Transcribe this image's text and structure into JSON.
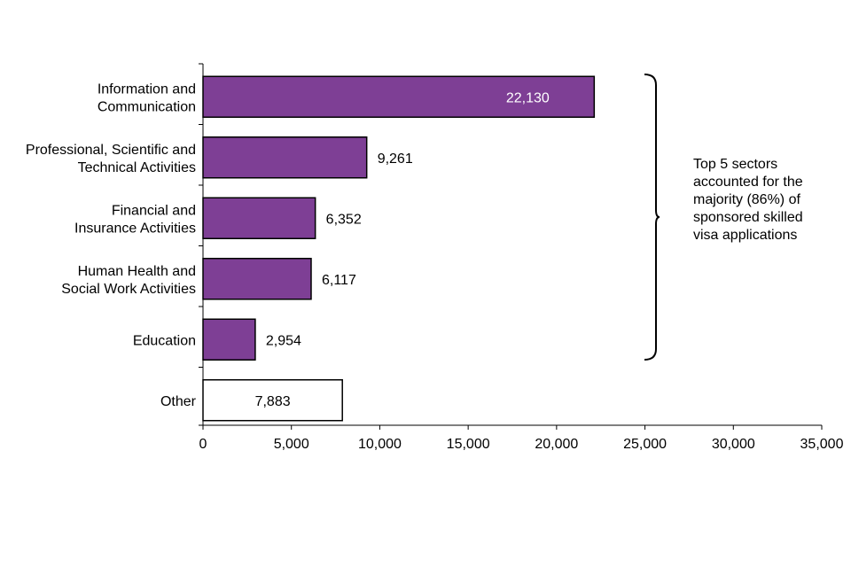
{
  "chart_data": {
    "type": "bar",
    "orientation": "horizontal",
    "categories": [
      [
        "Information and",
        "Communication"
      ],
      [
        "Professional, Scientific and",
        "Technical Activities"
      ],
      [
        "Financial and",
        "Insurance Activities"
      ],
      [
        "Human Health and",
        "Social Work Activities"
      ],
      [
        "Education"
      ],
      [
        "Other"
      ]
    ],
    "values": [
      22130,
      9261,
      6352,
      6117,
      2954,
      7883
    ],
    "value_labels": [
      "22,130",
      "9,261",
      "6,352",
      "6,117",
      "2,954",
      "7,883"
    ],
    "highlighted": [
      true,
      true,
      true,
      true,
      true,
      false
    ],
    "xlim": [
      0,
      35000
    ],
    "xticks": [
      0,
      5000,
      10000,
      15000,
      20000,
      25000,
      30000,
      35000
    ],
    "xtick_labels": [
      "0",
      "5,000",
      "10,000",
      "15,000",
      "20,000",
      "25,000",
      "30,000",
      "35,000"
    ],
    "title": "",
    "xlabel": "",
    "ylabel": "",
    "grid": false,
    "colors": {
      "highlight": "#7E3F95",
      "other": "#FFFFFF",
      "edge": "#000000"
    },
    "annotation": {
      "bracket_span": [
        "Information and Communication",
        "Education"
      ],
      "lines": [
        "Top 5 sectors",
        "accounted for the",
        "majority (86%) of",
        "sponsored skilled",
        "visa applications"
      ]
    }
  }
}
